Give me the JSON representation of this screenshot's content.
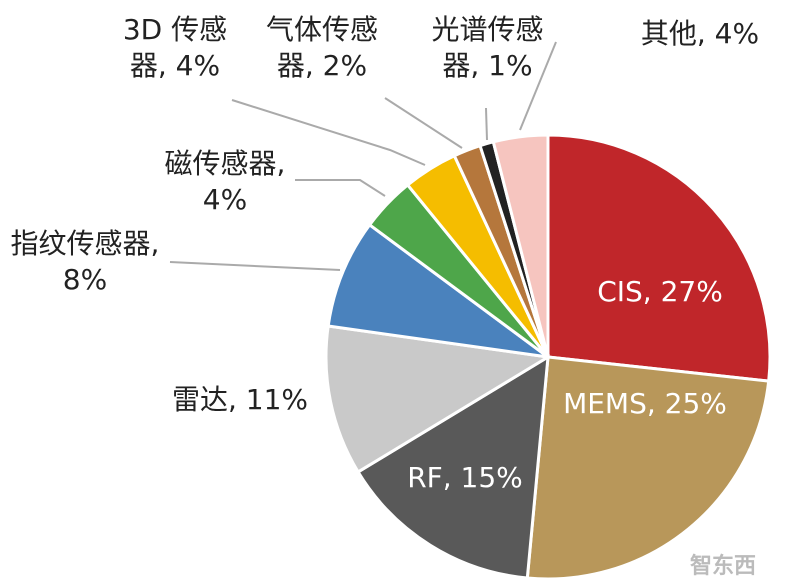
{
  "chart_data": {
    "type": "pie",
    "values": [
      27,
      25,
      15,
      11,
      8,
      4,
      4,
      2,
      1,
      4
    ],
    "value_labels": [
      "CIS, 27%",
      "MEMS, 25%",
      "RF, 15%",
      "雷达, 11%",
      "指纹传感器, 8%",
      "磁传感器, 4%",
      "3D 传感器, 4%",
      "气体传感器, 2%",
      "光谱传感器, 1%",
      "其他, 4%"
    ],
    "colors": [
      "#c0262a",
      "#b8975a",
      "#595959",
      "#c9c9c9",
      "#4a82bd",
      "#4ea64a",
      "#f5bd00",
      "#b5773c",
      "#222222",
      "#f6c5bf"
    ]
  },
  "watermark": "智东西"
}
